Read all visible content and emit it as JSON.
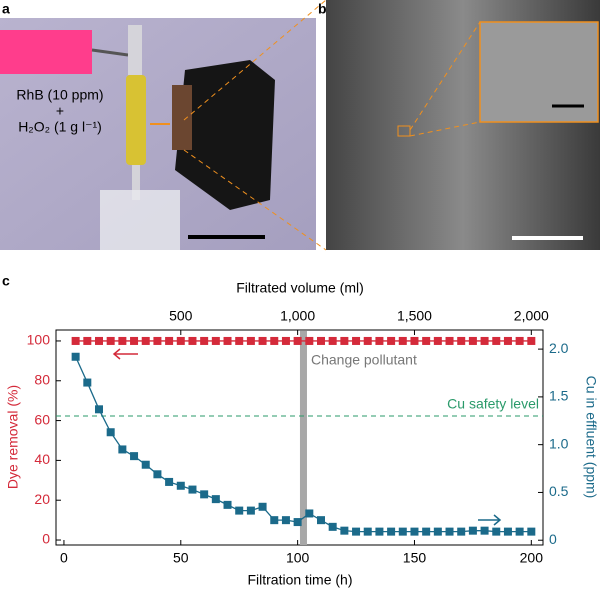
{
  "panel_a": {
    "label": "a",
    "texts": [
      "RhB (10 ppm)",
      "+",
      "H₂O₂ (1 g l⁻¹)"
    ]
  },
  "panel_b": {
    "label": "b"
  },
  "panel_c": {
    "label": "c"
  },
  "chart_data": {
    "type": "line",
    "xlabel": "Filtration time (h)",
    "x2label": "Filtrated volume (ml)",
    "ylabel": "Dye removal (%)",
    "y2label": "Cu in effluent (ppm)",
    "xlim": [
      -3.4,
      205
    ],
    "xticks": [
      0,
      50,
      100,
      150,
      200
    ],
    "x2lim": [
      -34,
      2050
    ],
    "x2ticks": [
      500,
      {
        "value": 1000,
        "label": "1,000"
      },
      {
        "value": 1500,
        "label": "1,500"
      },
      {
        "value": 2000,
        "label": "2,000"
      }
    ],
    "ylim": [
      -2.5,
      105.5
    ],
    "yticks": [
      0,
      20,
      40,
      60,
      80,
      100
    ],
    "y2lim": [
      -0.05,
      2.2
    ],
    "y2ticks": [
      0,
      0.5,
      {
        "value": 1,
        "label": "1.0"
      },
      1.5,
      {
        "value": 2,
        "label": "2.0"
      }
    ],
    "y_color": "#d42a3a",
    "y2_color": "#1b6a8a",
    "x": [
      5,
      10,
      15,
      20,
      25,
      30,
      35,
      40,
      45,
      50,
      55,
      60,
      65,
      70,
      75,
      80,
      85,
      90,
      95,
      100,
      105,
      110,
      115,
      120,
      125,
      130,
      135,
      140,
      145,
      150,
      155,
      160,
      165,
      170,
      175,
      180,
      185,
      190,
      195,
      200
    ],
    "series": [
      {
        "color": "#d42a3a",
        "values": [
          100,
          100,
          100,
          100,
          100,
          100,
          100,
          100,
          100,
          100,
          100,
          100,
          100,
          100,
          100,
          100,
          100,
          100,
          100,
          100,
          100,
          100,
          100,
          100,
          100,
          100,
          100,
          100,
          100,
          100,
          100,
          100,
          100,
          100,
          100,
          100,
          100,
          100,
          100,
          100
        ]
      },
      {
        "color": "#1b6a8a",
        "axis": "y2",
        "values": [
          1.92,
          1.65,
          1.37,
          1.13,
          0.95,
          0.88,
          0.79,
          0.69,
          0.61,
          0.57,
          0.53,
          0.48,
          0.43,
          0.37,
          0.31,
          0.31,
          0.35,
          0.21,
          0.21,
          0.19,
          0.28,
          0.21,
          0.14,
          0.1,
          0.09,
          0.09,
          0.09,
          0.09,
          0.09,
          0.09,
          0.09,
          0.09,
          0.09,
          0.09,
          0.1,
          0.1,
          0.09,
          0.09,
          0.09,
          0.09
        ]
      }
    ],
    "change_span": [
      101,
      104
    ],
    "change_label": "Change pollutant",
    "safety_level": 1.3,
    "safety_label": "Cu safety level"
  }
}
